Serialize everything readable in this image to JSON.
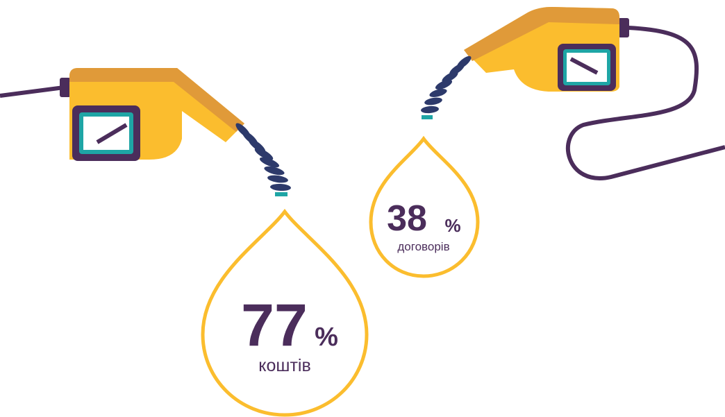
{
  "drops": [
    {
      "value": "77",
      "unit": "%",
      "label": "коштів"
    },
    {
      "value": "38",
      "unit": "%",
      "label": "договорів"
    }
  ]
}
